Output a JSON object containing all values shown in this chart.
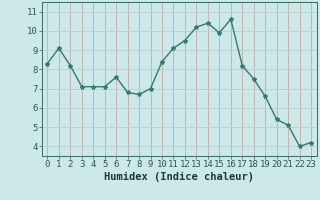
{
  "x": [
    0,
    1,
    2,
    3,
    4,
    5,
    6,
    7,
    8,
    9,
    10,
    11,
    12,
    13,
    14,
    15,
    16,
    17,
    18,
    19,
    20,
    21,
    22,
    23
  ],
  "y": [
    8.3,
    9.1,
    8.2,
    7.1,
    7.1,
    7.1,
    7.6,
    6.8,
    6.7,
    7.0,
    8.4,
    9.1,
    9.5,
    10.2,
    10.4,
    9.9,
    10.6,
    8.2,
    7.5,
    6.6,
    5.4,
    5.1,
    4.0,
    4.2
  ],
  "line_color": "#2e7d6e",
  "marker": "*",
  "marker_size": 3,
  "background_color": "#cce8e8",
  "grid_color_h": "#b8d0d0",
  "grid_color_v": "#c8a8a8",
  "xlabel": "Humidex (Indice chaleur)",
  "ylim": [
    3.5,
    11.5
  ],
  "xlim": [
    -0.5,
    23.5
  ],
  "yticks": [
    4,
    5,
    6,
    7,
    8,
    9,
    10,
    11
  ],
  "xticks": [
    0,
    1,
    2,
    3,
    4,
    5,
    6,
    7,
    8,
    9,
    10,
    11,
    12,
    13,
    14,
    15,
    16,
    17,
    18,
    19,
    20,
    21,
    22,
    23
  ],
  "xlabel_fontsize": 7.5,
  "tick_fontsize": 6.5,
  "line_width": 1.0
}
